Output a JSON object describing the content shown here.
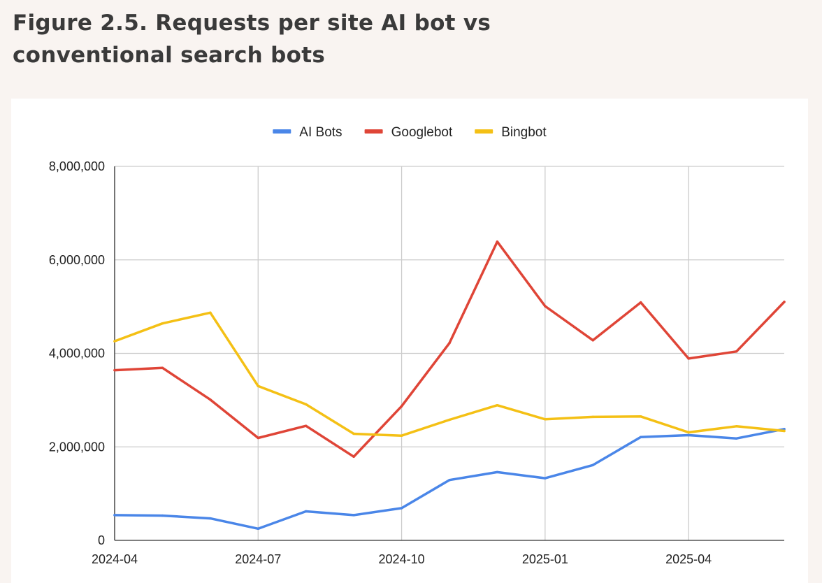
{
  "figure": {
    "title": "Figure 2.5. Requests per site AI bot vs conventional search bots"
  },
  "chart_data": {
    "type": "line",
    "title": "",
    "xlabel": "",
    "ylabel": "",
    "x": [
      "2024-04",
      "2024-05",
      "2024-06",
      "2024-07",
      "2024-08",
      "2024-09",
      "2024-10",
      "2024-11",
      "2024-12",
      "2025-01",
      "2025-02",
      "2025-03",
      "2025-04",
      "2025-05",
      "2025-06"
    ],
    "x_tick_labels": [
      "2024-04",
      "2024-07",
      "2024-10",
      "2025-01",
      "2025-04"
    ],
    "y_tick_labels": [
      "0",
      "2,000,000",
      "4,000,000",
      "6,000,000",
      "8,000,000"
    ],
    "ylim": [
      0,
      8000000
    ],
    "grid": true,
    "legend_position": "top-center",
    "series": [
      {
        "name": "AI Bots",
        "color": "#4a86e8",
        "values": [
          540000,
          530000,
          470000,
          250000,
          620000,
          540000,
          690000,
          1290000,
          1460000,
          1330000,
          1610000,
          2210000,
          2250000,
          2180000,
          2380000
        ]
      },
      {
        "name": "Googlebot",
        "color": "#df4537",
        "values": [
          3640000,
          3690000,
          3010000,
          2190000,
          2450000,
          1790000,
          2870000,
          4220000,
          6390000,
          5010000,
          4280000,
          5090000,
          3890000,
          4040000,
          5100000
        ]
      },
      {
        "name": "Bingbot",
        "color": "#f4c015",
        "values": [
          4260000,
          4640000,
          4870000,
          3300000,
          2910000,
          2280000,
          2240000,
          2580000,
          2890000,
          2590000,
          2640000,
          2650000,
          2310000,
          2440000,
          2340000
        ]
      }
    ]
  }
}
